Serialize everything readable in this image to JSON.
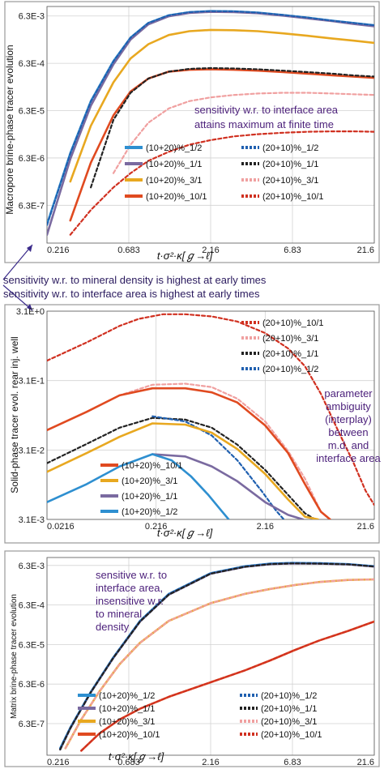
{
  "between_text": [
    "sensitivity w.r. to    mineral density     is highest at early times",
    "sensitivity w.r. to interface area is highest at early times"
  ],
  "chart_data": [
    {
      "type": "line",
      "ylabel": "Macropore brine-phase tracer evolution",
      "xlabel": "t·σ²·κ[ℊ→ℓ]",
      "x_scale": "log",
      "y_scale": "log",
      "xlim": [
        0.216,
        21.6
      ],
      "ylim": [
        1e-07,
        0.01
      ],
      "x_ticks": [
        0.216,
        0.683,
        2.16,
        6.83,
        21.6
      ],
      "x_tick_labels": [
        "0.216",
        "0.683",
        "2.16",
        "6.83",
        "21.6"
      ],
      "y_ticks": [
        6.3e-07,
        6.3e-06,
        6.3e-05,
        0.00063,
        0.0063
      ],
      "y_tick_labels": [
        "6.3E-7",
        "6.3E-6",
        "6.3E-5",
        "6.3E-4",
        "6.3E-3"
      ],
      "annotation": [
        "sensitivity w.r. to interface area",
        "attains maximum at finite time"
      ],
      "series": [
        {
          "name": "(10+20)%_1/2",
          "color": "#2e8fd0",
          "dash": false,
          "x": [
            0.216,
            0.3,
            0.4,
            0.55,
            0.7,
            0.9,
            1.2,
            1.6,
            2.16,
            3,
            4.2,
            6,
            8.5,
            12,
            16,
            21.6
          ],
          "y": [
            2.5e-07,
            8e-06,
            0.0001,
            0.0007,
            0.0022,
            0.0045,
            0.0065,
            0.0076,
            0.008,
            0.0079,
            0.0074,
            0.0066,
            0.0058,
            0.005,
            0.0045,
            0.004
          ]
        },
        {
          "name": "(10+20)%_1/1",
          "color": "#7a6aa0",
          "dash": false,
          "x": [
            0.216,
            0.3,
            0.4,
            0.55,
            0.7,
            0.9,
            1.2,
            1.6,
            2.16,
            3,
            4.2,
            6,
            8.5,
            12,
            16,
            21.6
          ],
          "y": [
            1.5e-07,
            6e-06,
            8e-05,
            0.0006,
            0.002,
            0.0042,
            0.0062,
            0.0073,
            0.0077,
            0.0076,
            0.0072,
            0.0064,
            0.0056,
            0.0049,
            0.0043,
            0.0038
          ]
        },
        {
          "name": "(10+20)%_3/1",
          "color": "#e8a820",
          "dash": false,
          "x": [
            0.3,
            0.4,
            0.55,
            0.7,
            0.9,
            1.2,
            1.6,
            2.16,
            3,
            4.2,
            6,
            8.5,
            12,
            16,
            21.6
          ],
          "y": [
            2e-06,
            3e-05,
            0.00025,
            0.0008,
            0.0016,
            0.0025,
            0.003,
            0.0032,
            0.00315,
            0.003,
            0.0027,
            0.0024,
            0.0021,
            0.0019,
            0.0017
          ]
        },
        {
          "name": "(10+20)%_10/1",
          "color": "#e04a20",
          "dash": false,
          "x": [
            0.3,
            0.4,
            0.55,
            0.7,
            0.9,
            1.2,
            1.6,
            2.16,
            3,
            4.2,
            6,
            8.5,
            12,
            16,
            21.6
          ],
          "y": [
            3e-07,
            5e-06,
            5e-05,
            0.00016,
            0.0003,
            0.00042,
            0.00046,
            0.00047,
            0.00046,
            0.00044,
            0.00041,
            0.00038,
            0.00035,
            0.00033,
            0.00031
          ]
        },
        {
          "name": "(20+10)%_1/2",
          "color": "#2060b0",
          "dash": true,
          "x": [
            0.216,
            0.3,
            0.4,
            0.55,
            0.7,
            0.9,
            1.2,
            1.6,
            2.16,
            3,
            4.2,
            6,
            8.5,
            12,
            16,
            21.6
          ],
          "y": [
            2.4e-07,
            7.8e-06,
            9.8e-05,
            0.00069,
            0.0022,
            0.0045,
            0.0065,
            0.0076,
            0.008,
            0.0079,
            0.0074,
            0.0066,
            0.0058,
            0.005,
            0.0045,
            0.004
          ]
        },
        {
          "name": "(20+10)%_1/1",
          "color": "#222222",
          "dash": true,
          "x": [
            0.4,
            0.55,
            0.7,
            0.9,
            1.2,
            1.6,
            2.16,
            3,
            4.2,
            6,
            8.5,
            12,
            16,
            21.6
          ],
          "y": [
            1.5e-06,
            4e-05,
            0.00015,
            0.0003,
            0.00042,
            0.00048,
            0.0005,
            0.00049,
            0.00047,
            0.00044,
            0.00041,
            0.00038,
            0.00035,
            0.00033
          ]
        },
        {
          "name": "(20+10)%_3/1",
          "color": "#f0a0a0",
          "dash": true,
          "x": [
            0.55,
            0.7,
            0.9,
            1.2,
            1.6,
            2.16,
            3,
            4.2,
            6,
            8.5,
            12,
            16,
            21.6
          ],
          "y": [
            3e-06,
            1.2e-05,
            3.5e-05,
            7e-05,
            0.0001,
            0.00012,
            0.000135,
            0.000145,
            0.00015,
            0.00015,
            0.000145,
            0.00014,
            0.000135
          ]
        },
        {
          "name": "(20+10)%_10/1",
          "color": "#d03020",
          "dash": true,
          "x": [
            0.3,
            0.4,
            0.55,
            0.7,
            0.9,
            1.2,
            1.6,
            2.16,
            3,
            4.2,
            6,
            8.5,
            12,
            16,
            21.6
          ],
          "y": [
            1.5e-07,
            5e-07,
            1.5e-06,
            3e-06,
            5.5e-06,
            8.5e-06,
            1.2e-05,
            1.5e-05,
            1.8e-05,
            2e-05,
            2.15e-05,
            2.25e-05,
            2.3e-05,
            2.3e-05,
            2.25e-05
          ]
        }
      ]
    },
    {
      "type": "line",
      "ylabel": "Solid-phase tracer evol. rear inj. well",
      "xlabel": "t·σ²·κ[ℊ→ℓ]",
      "x_scale": "log",
      "y_scale": "log",
      "xlim": [
        0.0216,
        21.6
      ],
      "ylim": [
        0.0031,
        3.1
      ],
      "x_ticks": [
        0.0216,
        0.216,
        2.16,
        21.6
      ],
      "x_tick_labels": [
        "0.0216",
        "0.216",
        "2.16",
        "21.6"
      ],
      "y_ticks": [
        0.0031,
        0.031,
        0.31,
        3.1
      ],
      "y_tick_labels": [
        "3.1E-3",
        "3.1E-2",
        "3.1E-1",
        "3.1E+0"
      ],
      "annotation": [
        "parameter",
        "ambiguity",
        "(interplay)",
        "between",
        "m.d. and",
        "interface area"
      ],
      "series": [
        {
          "name": "(20+10)%_10/1",
          "color": "#d03020",
          "dash": true,
          "x": [
            0.0216,
            0.05,
            0.1,
            0.15,
            0.25,
            0.4,
            0.7,
            1.2,
            2.16,
            3.5,
            5,
            7,
            10,
            14,
            18,
            21.6
          ],
          "y": [
            0.6,
            1.1,
            1.9,
            2.4,
            2.8,
            2.8,
            2.6,
            2.2,
            1.5,
            0.9,
            0.5,
            0.2,
            0.06,
            0.02,
            0.008,
            0.005
          ]
        },
        {
          "name": "(20+10)%_3/1",
          "color": "#f0a0a0",
          "dash": true,
          "x": [
            0.0216,
            0.05,
            0.1,
            0.2,
            0.4,
            0.7,
            1.2,
            2.16,
            3.5,
            5,
            7,
            8.5
          ],
          "y": [
            0.06,
            0.11,
            0.19,
            0.27,
            0.28,
            0.25,
            0.17,
            0.08,
            0.03,
            0.012,
            0.004,
            0.0031
          ]
        },
        {
          "name": "(20+10)%_1/1",
          "color": "#222222",
          "dash": true,
          "x": [
            0.0216,
            0.05,
            0.1,
            0.2,
            0.4,
            0.7,
            1.2,
            2.16,
            3.5,
            5,
            6.2
          ],
          "y": [
            0.02,
            0.038,
            0.065,
            0.09,
            0.085,
            0.065,
            0.037,
            0.016,
            0.007,
            0.0038,
            0.0031
          ]
        },
        {
          "name": "(20+10)%_1/2",
          "color": "#2060b0",
          "dash": true,
          "x": [
            0.2,
            0.4,
            0.7,
            1.2,
            2.0,
            2.7,
            3.2
          ],
          "y": [
            0.095,
            0.08,
            0.05,
            0.022,
            0.008,
            0.0042,
            0.0031
          ]
        },
        {
          "name": "(10+20)%_10/1",
          "color": "#e04a20",
          "dash": false,
          "x": [
            0.0216,
            0.05,
            0.1,
            0.2,
            0.4,
            0.7,
            1.2,
            2.16,
            3.5,
            5,
            7,
            8.5
          ],
          "y": [
            0.06,
            0.11,
            0.19,
            0.24,
            0.24,
            0.21,
            0.15,
            0.07,
            0.028,
            0.01,
            0.004,
            0.0031
          ]
        },
        {
          "name": "(10+20)%_3/1",
          "color": "#e8a820",
          "dash": false,
          "x": [
            0.0216,
            0.05,
            0.1,
            0.2,
            0.4,
            0.7,
            1.2,
            2.16,
            3.5,
            5,
            6.6
          ],
          "y": [
            0.015,
            0.028,
            0.048,
            0.075,
            0.072,
            0.055,
            0.032,
            0.014,
            0.006,
            0.0034,
            0.0031
          ]
        },
        {
          "name": "(10+20)%_1/1",
          "color": "#7a6aa0",
          "dash": false,
          "x": [
            0.2,
            0.4,
            0.7,
            1.2,
            2.16,
            3.5,
            4.8
          ],
          "y": [
            0.027,
            0.025,
            0.018,
            0.011,
            0.0055,
            0.0036,
            0.0031
          ]
        },
        {
          "name": "(10+20)%_1/2",
          "color": "#2e8fd0",
          "dash": false,
          "x": [
            0.0216,
            0.05,
            0.1,
            0.2,
            0.3,
            0.45,
            0.65,
            0.85,
            1.0
          ],
          "y": [
            0.0055,
            0.01,
            0.018,
            0.027,
            0.022,
            0.013,
            0.007,
            0.0042,
            0.0031
          ]
        }
      ]
    },
    {
      "type": "line",
      "ylabel": "Matrix brine-phase tracer evolution",
      "xlabel": "t·σ²·κ[ℊ→ℓ]",
      "x_scale": "log",
      "y_scale": "log",
      "xlim": [
        0.216,
        21.6
      ],
      "ylim": [
        1e-07,
        0.01
      ],
      "x_ticks": [
        0.216,
        0.683,
        2.16,
        6.83,
        21.6
      ],
      "x_tick_labels": [
        "0.216",
        "0.683",
        "2.16",
        "6.83",
        "21.6"
      ],
      "y_ticks": [
        6.3e-07,
        6.3e-06,
        6.3e-05,
        0.00063,
        0.0063
      ],
      "y_tick_labels": [
        "6.3E-7",
        "6.3E-6",
        "6.3E-5",
        "6.3E-4",
        "6.3E-3"
      ],
      "annotation": [
        "sensitive w.r. to",
        "interface area,",
        "insensitive w.r.",
        "to mineral",
        "density"
      ],
      "series": [
        {
          "name": "(10+20)%_1/2",
          "color": "#2e8fd0",
          "dash": false,
          "x": [
            0.26,
            0.3,
            0.4,
            0.55,
            0.8,
            1.2,
            2.16,
            3.5,
            5,
            6.83,
            10,
            15,
            21.6
          ],
          "y": [
            1.5e-07,
            5e-07,
            4e-06,
            3e-05,
            0.00025,
            0.0012,
            0.004,
            0.006,
            0.007,
            0.0073,
            0.0072,
            0.0068,
            0.006
          ]
        },
        {
          "name": "(10+20)%_1/1",
          "color": "#7a6aa0",
          "dash": false,
          "x": [
            0.26,
            0.3,
            0.4,
            0.55,
            0.8,
            1.2,
            2.16,
            3.5,
            5,
            6.83,
            10,
            15,
            21.6
          ],
          "y": [
            1.4e-07,
            4.8e-07,
            3.9e-06,
            2.9e-05,
            0.00024,
            0.00115,
            0.0039,
            0.0058,
            0.0068,
            0.0071,
            0.007,
            0.0067,
            0.0059
          ]
        },
        {
          "name": "(10+20)%_3/1",
          "color": "#e8a820",
          "dash": false,
          "x": [
            0.28,
            0.35,
            0.45,
            0.6,
            0.8,
            1.2,
            2.16,
            3.5,
            5,
            7,
            10,
            15,
            21.6
          ],
          "y": [
            1.5e-07,
            8e-07,
            4e-06,
            2e-05,
            7e-05,
            0.00025,
            0.0007,
            0.0012,
            0.0016,
            0.002,
            0.0024,
            0.0027,
            0.0028
          ]
        },
        {
          "name": "(10+20)%_10/1",
          "color": "#e04a20",
          "dash": false,
          "x": [
            0.35,
            0.45,
            0.6,
            0.8,
            1.2,
            2.16,
            3.5,
            5,
            7,
            10,
            15,
            21.6
          ],
          "y": [
            1.3e-07,
            3.5e-07,
            8e-07,
            1.5e-06,
            3e-06,
            7e-06,
            1.4e-05,
            2.5e-05,
            4.5e-05,
            8e-05,
            0.00014,
            0.00024
          ]
        },
        {
          "name": "(20+10)%_1/2",
          "color": "#2060b0",
          "dash": true,
          "x": [
            0.26,
            0.3,
            0.4,
            0.55,
            0.8,
            1.2,
            2.16,
            3.5,
            5,
            6.83,
            10,
            15,
            21.6
          ],
          "y": [
            1.5e-07,
            5e-07,
            4e-06,
            3e-05,
            0.00025,
            0.0012,
            0.004,
            0.006,
            0.007,
            0.0073,
            0.0072,
            0.0068,
            0.006
          ]
        },
        {
          "name": "(20+10)%_1/1",
          "color": "#222222",
          "dash": true,
          "x": [
            0.26,
            0.3,
            0.4,
            0.55,
            0.8,
            1.2,
            2.16,
            3.5,
            5,
            6.83,
            10,
            15,
            21.6
          ],
          "y": [
            1.4e-07,
            4.8e-07,
            3.9e-06,
            2.9e-05,
            0.00024,
            0.00115,
            0.0039,
            0.0058,
            0.0068,
            0.0071,
            0.007,
            0.0067,
            0.0059
          ]
        },
        {
          "name": "(20+10)%_3/1",
          "color": "#f0a0a0",
          "dash": true,
          "x": [
            0.28,
            0.35,
            0.45,
            0.6,
            0.8,
            1.2,
            2.16,
            3.5,
            5,
            7,
            10,
            15,
            21.6
          ],
          "y": [
            1.5e-07,
            8e-07,
            4e-06,
            2e-05,
            7e-05,
            0.00025,
            0.0007,
            0.0012,
            0.0016,
            0.002,
            0.0024,
            0.0027,
            0.0028
          ]
        },
        {
          "name": "(20+10)%_10/1",
          "color": "#d03020",
          "dash": true,
          "x": [
            0.35,
            0.45,
            0.6,
            0.8,
            1.2,
            2.16,
            3.5,
            5,
            7,
            10,
            15,
            21.6
          ],
          "y": [
            1.3e-07,
            3.5e-07,
            8e-07,
            1.5e-06,
            3e-06,
            7e-06,
            1.4e-05,
            2.5e-05,
            4.5e-05,
            8e-05,
            0.00014,
            0.00024
          ]
        }
      ]
    }
  ]
}
